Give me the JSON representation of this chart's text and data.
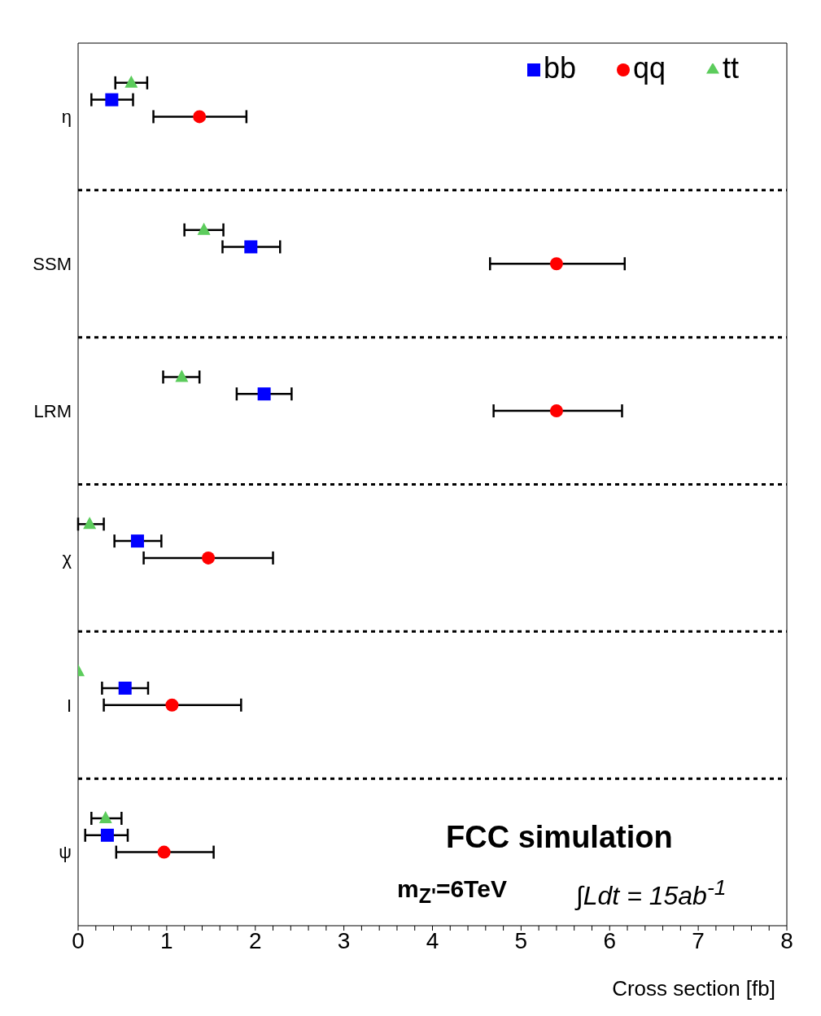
{
  "chart_data": {
    "type": "scatter",
    "orientation": "horizontal",
    "xlabel": "Cross section [fb]",
    "categories": [
      "η",
      "SSM",
      "LRM",
      "χ",
      "I",
      "ψ"
    ],
    "series": [
      {
        "name": "qq",
        "color": "#ff0000",
        "marker": "circle",
        "values": [
          1.37,
          5.4,
          5.4,
          1.47,
          1.06,
          0.97
        ],
        "errors": [
          [
            0.85,
            1.9
          ],
          [
            4.65,
            6.17
          ],
          [
            4.69,
            6.14
          ],
          [
            0.74,
            2.2
          ],
          [
            0.29,
            1.84
          ],
          [
            0.43,
            1.53
          ]
        ]
      },
      {
        "name": "bb",
        "color": "#0000ff",
        "marker": "square",
        "values": [
          0.38,
          1.95,
          2.1,
          0.67,
          0.53,
          0.33
        ],
        "errors": [
          [
            0.15,
            0.62
          ],
          [
            1.63,
            2.28
          ],
          [
            1.79,
            2.41
          ],
          [
            0.41,
            0.94
          ],
          [
            0.27,
            0.79
          ],
          [
            0.08,
            0.56
          ]
        ]
      },
      {
        "name": "tt",
        "color": "#5ccc5c",
        "marker": "triangle",
        "values": [
          0.6,
          1.42,
          1.17,
          0.13,
          0,
          0.31
        ],
        "errors": [
          [
            0.42,
            0.78
          ],
          [
            1.2,
            1.64
          ],
          [
            0.96,
            1.37
          ],
          [
            0,
            0.29
          ],
          null,
          [
            0.15,
            0.49
          ]
        ]
      }
    ],
    "xlim": [
      0,
      8
    ],
    "xticks": [
      0,
      {
        "value": 0.2,
        "label": null
      },
      {
        "value": 0.4,
        "label": null
      },
      {
        "value": 0.6,
        "label": null
      },
      {
        "value": 0.8,
        "label": null
      },
      1,
      {
        "value": 1.2,
        "label": null
      },
      {
        "value": 1.4,
        "label": null
      },
      {
        "value": 1.6,
        "label": null
      },
      {
        "value": 1.8,
        "label": null
      },
      2,
      {
        "value": 2.2,
        "label": null
      },
      {
        "value": 2.4,
        "label": null
      },
      {
        "value": 2.6,
        "label": null
      },
      {
        "value": 2.8,
        "label": null
      },
      3,
      {
        "value": 3.2,
        "label": null
      },
      {
        "value": 3.4,
        "label": null
      },
      {
        "value": 3.6,
        "label": null
      },
      {
        "value": 3.8,
        "label": null
      },
      4,
      {
        "value": 4.2,
        "label": null
      },
      {
        "value": 4.4,
        "label": null
      },
      {
        "value": 4.6,
        "label": null
      },
      {
        "value": 4.8,
        "label": null
      },
      5,
      {
        "value": 5.2,
        "label": null
      },
      {
        "value": 5.4,
        "label": null
      },
      {
        "value": 5.6,
        "label": null
      },
      {
        "value": 5.8,
        "label": null
      },
      6,
      {
        "value": 6.2,
        "label": null
      },
      {
        "value": 6.4,
        "label": null
      },
      {
        "value": 6.6,
        "label": null
      },
      {
        "value": 6.8,
        "label": null
      },
      7,
      {
        "value": 7.2,
        "label": null
      },
      {
        "value": 7.4,
        "label": null
      },
      {
        "value": 7.6,
        "label": null
      },
      {
        "value": 7.8,
        "label": null
      },
      8
    ],
    "grid": "y",
    "legend": "top right",
    "annotations": [
      "FCC simulation",
      "m$_{Z'}$=6TeV",
      "∫Ldt = 15ab$^{-1}$"
    ]
  }
}
